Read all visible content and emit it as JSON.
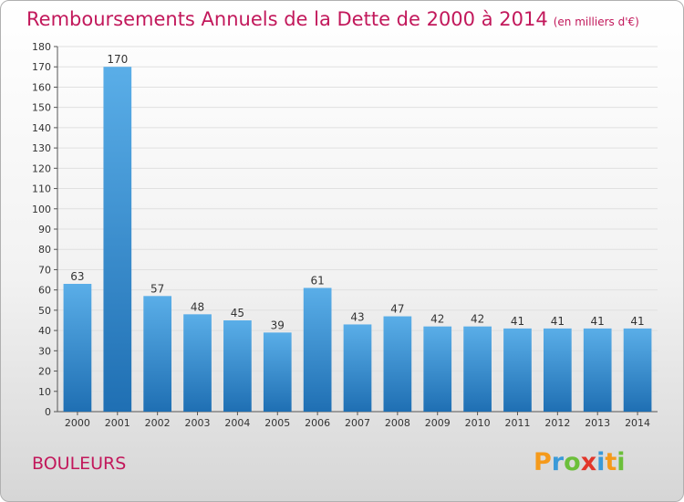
{
  "title": "Remboursements Annuels de la Dette de 2000 à 2014",
  "unit_label": "(en milliers d'€)",
  "commune": "BOULEURS",
  "logo": {
    "text": "Proxiti"
  },
  "colors": {
    "bar_top": "#5aaee8",
    "bar_bottom": "#1f6fb3",
    "title": "#c2185b",
    "grid": "#e0e0e0"
  },
  "chart_data": {
    "type": "bar",
    "title": "Remboursements Annuels de la Dette de 2000 à 2014",
    "subtitle": "(en milliers d'€)",
    "categories": [
      "2000",
      "2001",
      "2002",
      "2003",
      "2004",
      "2005",
      "2006",
      "2007",
      "2008",
      "2009",
      "2010",
      "2011",
      "2012",
      "2013",
      "2014"
    ],
    "values": [
      63,
      170,
      57,
      48,
      45,
      39,
      61,
      43,
      47,
      42,
      42,
      41,
      41,
      41,
      41
    ],
    "data_labels": [
      "63",
      "170",
      "57",
      "48",
      "45",
      "39",
      "61",
      "43",
      "47",
      "42",
      "42",
      "41",
      "41",
      "41",
      "41"
    ],
    "ylim": [
      0,
      180
    ],
    "yticks": [
      "0",
      "10",
      "20",
      "30",
      "40",
      "50",
      "60",
      "70",
      "80",
      "90",
      "100",
      "110",
      "120",
      "130",
      "140",
      "150",
      "160",
      "170",
      "180"
    ],
    "grid": true,
    "legend": "none"
  }
}
